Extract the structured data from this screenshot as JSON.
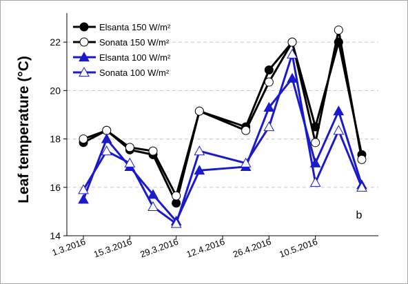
{
  "chart_data": {
    "type": "line",
    "ylabel": "Leaf temperature (°C)",
    "xlabel": "",
    "panel_label": "b",
    "ylim": [
      14,
      23.2
    ],
    "yticks": [
      14,
      16,
      18,
      20,
      22
    ],
    "xlim": [
      "2016-02-25",
      "2016-05-29"
    ],
    "xticks": [
      "2016-03-01",
      "2016-03-15",
      "2016-03-29",
      "2016-04-12",
      "2016-04-26",
      "2016-05-10"
    ],
    "xtick_labels": [
      "1.3.2016",
      "15.3.2016",
      "29.3.2016",
      "12.4.2016",
      "26.4.2016",
      "10.5.2016"
    ],
    "grid": "horizontal-dashed",
    "legend_position": "top-left",
    "x": [
      "2016-03-01",
      "2016-03-08",
      "2016-03-15",
      "2016-03-22",
      "2016-03-29",
      "2016-04-05",
      "2016-04-19",
      "2016-04-26",
      "2016-05-03",
      "2016-05-10",
      "2016-05-17",
      "2016-05-24"
    ],
    "series": [
      {
        "name": "Elsanta 150 W/m²",
        "color": "#000000",
        "marker": "circle",
        "filled": true,
        "values": [
          17.85,
          18.35,
          17.55,
          17.35,
          15.35,
          19.15,
          18.5,
          20.85,
          22.0,
          18.5,
          22.0,
          17.35
        ]
      },
      {
        "name": "Sonata 150 W/m²",
        "color": "#000000",
        "marker": "circle",
        "filled": false,
        "values": [
          18.0,
          18.35,
          17.65,
          17.5,
          15.65,
          19.15,
          18.35,
          20.35,
          22.0,
          17.85,
          22.5,
          17.15
        ]
      },
      {
        "name": "Elsanta 100 W/m²",
        "color": "#1a1acc",
        "marker": "triangle",
        "filled": true,
        "values": [
          15.5,
          18.0,
          16.85,
          15.7,
          14.6,
          16.7,
          16.85,
          19.3,
          20.5,
          17.0,
          19.15,
          16.1
        ]
      },
      {
        "name": "Sonata 100 W/m²",
        "color": "#1a1acc",
        "marker": "triangle",
        "filled": false,
        "values": [
          15.9,
          17.5,
          17.0,
          15.2,
          14.5,
          17.5,
          17.0,
          18.5,
          21.5,
          16.2,
          18.35,
          16.0
        ]
      }
    ]
  }
}
